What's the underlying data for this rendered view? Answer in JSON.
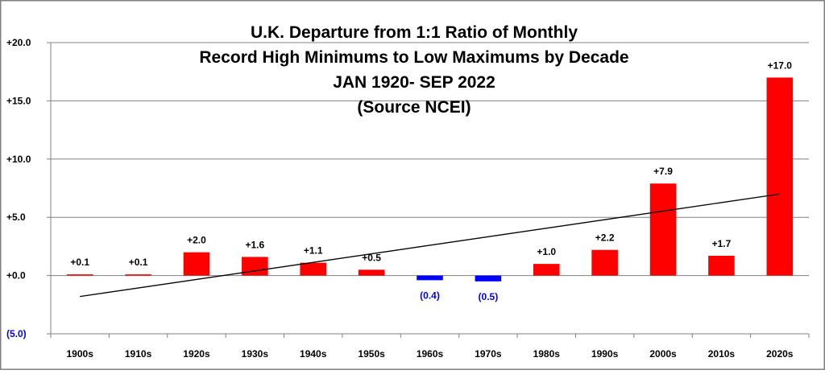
{
  "chart_data": {
    "type": "bar",
    "title_lines": [
      "U.K. Departure from 1:1 Ratio of Monthly",
      "Record High Minimums to Low Maximums by Decade",
      "JAN 1920- SEP 2022",
      "(Source NCEI)"
    ],
    "categories": [
      "1900s",
      "1910s",
      "1920s",
      "1930s",
      "1940s",
      "1950s",
      "1960s",
      "1970s",
      "1980s",
      "1990s",
      "2000s",
      "2010s",
      "2020s"
    ],
    "values": [
      0.1,
      0.1,
      2.0,
      1.6,
      1.1,
      0.5,
      -0.4,
      -0.5,
      1.0,
      2.2,
      7.9,
      1.7,
      17.0
    ],
    "data_labels": [
      "+0.1",
      "+0.1",
      "+2.0",
      "+1.6",
      "+1.1",
      "+0.5",
      "(0.4)",
      "(0.5)",
      "+1.0",
      "+2.2",
      "+7.9",
      "+1.7",
      "+17.0"
    ],
    "ylim": [
      -5,
      20
    ],
    "yticks": [
      {
        "value": 20,
        "label": "+20.0"
      },
      {
        "value": 15,
        "label": "+15.0"
      },
      {
        "value": 10,
        "label": "+10.0"
      },
      {
        "value": 5,
        "label": "+5.0"
      },
      {
        "value": 0,
        "label": "+0.0"
      },
      {
        "value": -5,
        "label": "(5.0)"
      }
    ],
    "trendline": {
      "start_value": -1.8,
      "end_value": 7.0
    },
    "grid": true,
    "legend": "none",
    "colors": {
      "positive": "#ff0000",
      "negative": "#0000ff",
      "trendline": "#000000",
      "grid": "#808080",
      "negative_label": "#0000ff",
      "positive_label": "#000000"
    }
  }
}
